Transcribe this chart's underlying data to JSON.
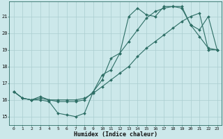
{
  "xlabel": "Humidex (Indice chaleur)",
  "background_color": "#cce8ea",
  "grid_color": "#aacdd0",
  "line_color": "#2d6e65",
  "xlim": [
    -0.5,
    23.5
  ],
  "ylim": [
    14.5,
    21.9
  ],
  "yticks": [
    15,
    16,
    17,
    18,
    19,
    20,
    21
  ],
  "xticks": [
    0,
    1,
    2,
    3,
    4,
    5,
    6,
    7,
    8,
    9,
    10,
    11,
    12,
    13,
    14,
    15,
    16,
    17,
    18,
    19,
    20,
    21,
    22,
    23
  ],
  "series": [
    [
      16.5,
      16.1,
      16.0,
      16.0,
      15.9,
      15.2,
      15.1,
      15.0,
      15.2,
      16.5,
      17.5,
      17.8,
      18.8,
      21.0,
      21.5,
      21.1,
      21.0,
      21.6,
      21.6,
      21.5,
      20.5,
      19.8,
      19.1,
      19.0
    ],
    [
      16.5,
      16.1,
      16.0,
      16.1,
      16.0,
      15.9,
      15.9,
      15.9,
      16.0,
      16.5,
      17.2,
      18.5,
      18.8,
      19.5,
      20.2,
      20.9,
      21.3,
      21.5,
      21.6,
      21.6,
      20.5,
      20.2,
      21.0,
      19.0
    ],
    [
      16.5,
      16.1,
      16.0,
      16.2,
      16.0,
      16.0,
      16.0,
      16.0,
      16.1,
      16.4,
      16.8,
      17.2,
      17.6,
      18.0,
      18.6,
      19.1,
      19.5,
      19.9,
      20.3,
      20.7,
      21.0,
      21.2,
      19.0,
      19.0
    ]
  ],
  "figsize": [
    3.2,
    2.0
  ],
  "dpi": 100
}
